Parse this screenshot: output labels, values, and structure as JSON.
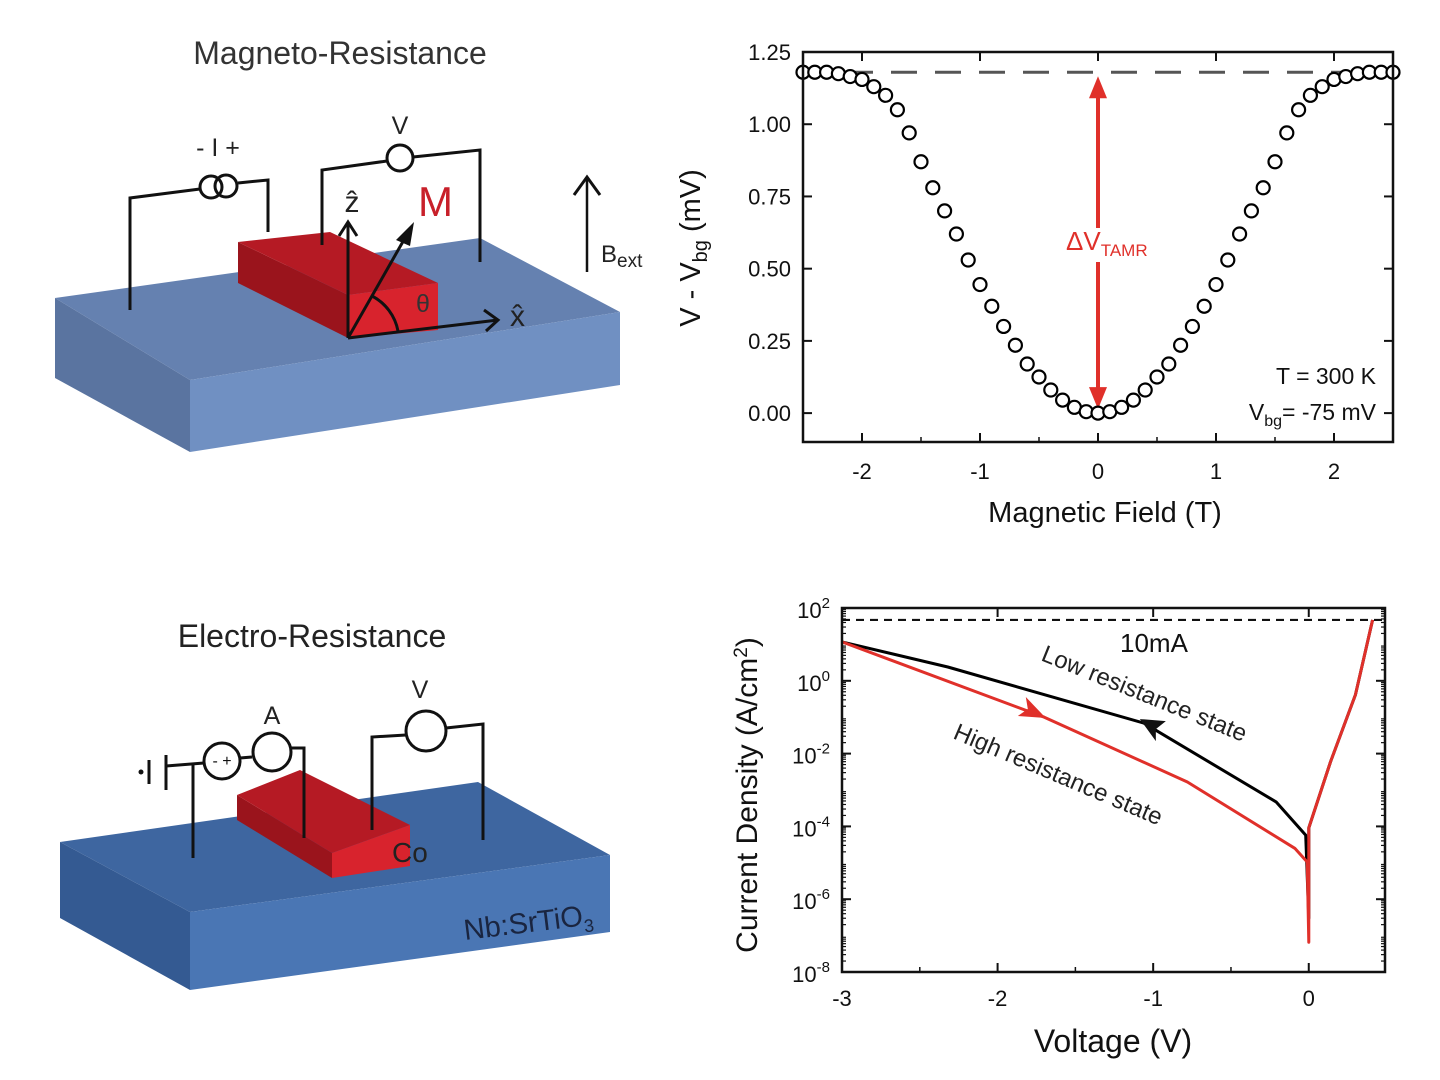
{
  "diagram_top": {
    "title": "Magneto-Resistance",
    "current_source_label": "- I +",
    "voltmeter_label": "V",
    "z_axis_label": "ẑ",
    "x_axis_label": "x̂",
    "magnetization_label": "M",
    "angle_label": "θ",
    "field_label": "B",
    "field_label_sub": "ext"
  },
  "diagram_bottom": {
    "title": "Electro-Resistance",
    "source_label": "- +",
    "ammeter_label": "A",
    "voltmeter_label": "V",
    "electrode_label": "Co",
    "substrate_label": "Nb:SrTiO",
    "substrate_label_sub": "3"
  },
  "colors": {
    "substrate_top": "#6581b0",
    "substrate_front": "#7090c2",
    "substrate_bottom_top": "#3e66a0",
    "substrate_bottom_front": "#4a76b4",
    "electrode": "#c8202a",
    "red_curve": "#e0302a",
    "black_curve": "#000000"
  },
  "chart_data": [
    {
      "type": "scatter",
      "xlabel": "Magnetic Field (T)",
      "ylabel_main": "V - V",
      "ylabel_sub": "bg",
      "ylabel_tail": " (mV)",
      "xlim": [
        -2.5,
        2.5
      ],
      "ylim": [
        -0.1,
        1.25
      ],
      "xticks": [
        -2,
        -1,
        0,
        1,
        2
      ],
      "xtick_labels": [
        "-2",
        "-1",
        "0",
        "1",
        "2"
      ],
      "yticks": [
        0,
        0.25,
        0.5,
        0.75,
        1.0,
        1.25
      ],
      "ytick_labels": [
        "0.00",
        "0.25",
        "0.50",
        "0.75",
        "1.00",
        "1.25"
      ],
      "reference_line_y": 1.18,
      "annotation_delta": "ΔV",
      "annotation_delta_sub": "TAMR",
      "annotation_temp": "T = 300 K",
      "annotation_vbg_main": "V",
      "annotation_vbg_sub": "bg",
      "annotation_vbg_tail": "= -75 mV",
      "x": [
        -2.5,
        -2.4,
        -2.3,
        -2.2,
        -2.1,
        -2.0,
        -1.9,
        -1.8,
        -1.7,
        -1.6,
        -1.5,
        -1.4,
        -1.3,
        -1.2,
        -1.1,
        -1.0,
        -0.9,
        -0.8,
        -0.7,
        -0.6,
        -0.5,
        -0.4,
        -0.3,
        -0.2,
        -0.1,
        0,
        0.1,
        0.2,
        0.3,
        0.4,
        0.5,
        0.6,
        0.7,
        0.8,
        0.9,
        1.0,
        1.1,
        1.2,
        1.3,
        1.4,
        1.5,
        1.6,
        1.7,
        1.8,
        1.9,
        2.0,
        2.1,
        2.2,
        2.3,
        2.4,
        2.5
      ],
      "y": [
        1.18,
        1.18,
        1.18,
        1.175,
        1.165,
        1.155,
        1.13,
        1.1,
        1.05,
        0.97,
        0.87,
        0.78,
        0.7,
        0.62,
        0.53,
        0.445,
        0.37,
        0.3,
        0.235,
        0.17,
        0.125,
        0.08,
        0.045,
        0.02,
        0.005,
        0,
        0.005,
        0.02,
        0.045,
        0.08,
        0.125,
        0.17,
        0.235,
        0.3,
        0.37,
        0.445,
        0.53,
        0.62,
        0.7,
        0.78,
        0.87,
        0.97,
        1.05,
        1.1,
        1.13,
        1.155,
        1.165,
        1.175,
        1.18,
        1.18,
        1.18
      ]
    },
    {
      "type": "line",
      "xlabel": "Voltage (V)",
      "ylabel_main": "Current Density (A/cm",
      "ylabel_sup": "2",
      "ylabel_tail": ")",
      "xlim": [
        -3,
        0.49
      ],
      "ylim": [
        1e-08,
        100
      ],
      "yscale": "log",
      "xticks": [
        -3,
        -2,
        -1,
        0
      ],
      "xtick_labels": [
        "-3",
        "-2",
        "-1",
        "0"
      ],
      "yticks": [
        100,
        1,
        0.01,
        0.0001,
        1e-06,
        1e-08
      ],
      "ytick_bases": [
        "10",
        "10",
        "10",
        "10",
        "10",
        "10"
      ],
      "ytick_exponents": [
        "2",
        "0",
        "-2",
        "-4",
        "-6",
        "-8"
      ],
      "compliance_line_y": 47,
      "annotation_compliance": "10mA",
      "series": [
        {
          "name": "Low resistance state",
          "color": "#000000",
          "x": [
            -3,
            -2.32,
            -1.06,
            -0.21,
            -0.02,
            0,
            0,
            0,
            0.14,
            0.3,
            0.41
          ],
          "y": [
            11.7,
            2.4,
            0.069,
            0.00047,
            5.75e-05,
            3e-07,
            3e-07,
            9.1e-05,
            0.0059,
            0.41,
            47
          ]
        },
        {
          "name": "High resistance state",
          "color": "#e0302a",
          "x": [
            -3,
            -1.7,
            -0.78,
            -0.09,
            -0.01,
            0,
            0,
            0.14,
            0.3,
            0.41
          ],
          "y": [
            11.7,
            0.1,
            0.00166,
            2.51e-05,
            1.05e-05,
            6.6e-08,
            9.1e-05,
            0.0059,
            0.41,
            47
          ]
        }
      ]
    }
  ]
}
